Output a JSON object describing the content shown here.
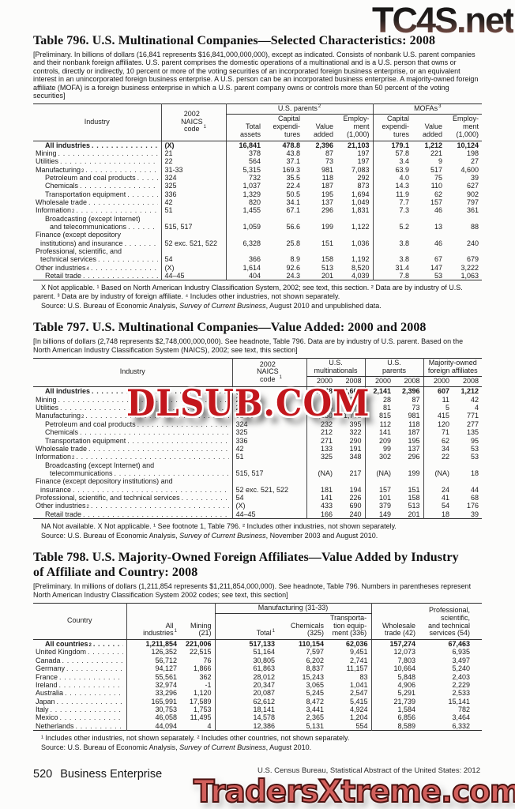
{
  "watermarks": {
    "top": "TC4S.net",
    "middle": "DLSUB.COM",
    "bottom": "TradersXtreme.com"
  },
  "footer": {
    "page_number": "520",
    "section": "Business Enterprise",
    "imprint": "U.S. Census Bureau, Statistical Abstract of the United States: 2012"
  },
  "t796": {
    "title": "Table 796. U.S. Multinational Companies—Selected Characteristics: 2008",
    "headnote": "[Preliminary. In billions of dollars (16,841 represents $16,841,000,000,000), except as indicated. Consists of nonbank U.S. parent companies and their nonbank foreign affiliates. U.S. parent comprises the domestic operations of a multinational and is a U.S. person that owns or controls, directly or indirectly, 10 percent or more of the voting securities of an incorporated foreign business enterprise, or an equivalent interest in an unincorporated foreign business enterprise. A U.S. person can be an incorporated business enterprise. A majority-owned foreign affiliate (MOFA) is a foreign business enterprise in which a U.S. parent company owns or controls more than 50 percent of the voting securities]",
    "header": {
      "industry": "Industry",
      "naics": {
        "text": "2002\nNAICS\ncode",
        "sup": "1"
      },
      "parents": {
        "text": "U.S. parents",
        "sup": "2"
      },
      "mofas": {
        "text": "MOFAs",
        "sup": "3"
      },
      "cols": [
        "Total\nassets",
        "Capital\nexpendi-\ntures",
        "Value\nadded",
        "Employ-\nment\n(1,000)",
        "Capital\nexpendi-\ntures",
        "Value\nadded",
        "Employ-\nment\n(1,000)"
      ]
    },
    "rows": [
      {
        "label": "All industries",
        "bold": true,
        "naics": "(X)",
        "values": [
          "16,841",
          "478.8",
          "2,396",
          "21,103",
          "179.1",
          "1,212",
          "10,124"
        ]
      },
      {
        "label": "Mining",
        "naics": "21",
        "values": [
          "378",
          "43.8",
          "87",
          "197",
          "57.8",
          "221",
          "198"
        ]
      },
      {
        "label": "Utilities",
        "naics": "22",
        "values": [
          "564",
          "37.1",
          "73",
          "197",
          "3.4",
          "9",
          "27"
        ]
      },
      {
        "label": "Manufacturing",
        "sup": "2",
        "naics": "31-33",
        "values": [
          "5,315",
          "169.3",
          "981",
          "7,083",
          "63.9",
          "517",
          "4,600"
        ]
      },
      {
        "label": "Petroleum and coal products",
        "ind": 1,
        "naics": "324",
        "values": [
          "732",
          "35.5",
          "118",
          "292",
          "4.0",
          "75",
          "39"
        ]
      },
      {
        "label": "Chemicals",
        "ind": 1,
        "naics": "325",
        "values": [
          "1,037",
          "22.4",
          "187",
          "873",
          "14.3",
          "110",
          "627"
        ]
      },
      {
        "label": "Transportation equipment",
        "ind": 1,
        "naics": "336",
        "values": [
          "1,329",
          "50.5",
          "195",
          "1,694",
          "11.9",
          "62",
          "902"
        ]
      },
      {
        "label": "Wholesale trade",
        "naics": "42",
        "values": [
          "820",
          "34.1",
          "137",
          "1,049",
          "7.7",
          "157",
          "797"
        ]
      },
      {
        "label": "Information",
        "sup": "2",
        "naics": "51",
        "values": [
          "1,455",
          "67.1",
          "296",
          "1,831",
          "7.3",
          "46",
          "361"
        ]
      },
      {
        "label": "Broadcasting (except Internet)",
        "label2": "and telecommunications",
        "ind": 1,
        "naics": "515, 517",
        "values": [
          "1,059",
          "56.6",
          "199",
          "1,122",
          "5.2",
          "13",
          "88"
        ]
      },
      {
        "label": "Finance (except depository",
        "label2": "institutions) and insurance",
        "naics": "52 exc. 521, 522",
        "values": [
          "6,328",
          "25.8",
          "151",
          "1,036",
          "3.8",
          "46",
          "240"
        ]
      },
      {
        "label": "Professional, scientific, and",
        "label2": "technical services",
        "naics": "54",
        "values": [
          "366",
          "8.9",
          "158",
          "1,192",
          "3.8",
          "67",
          "679"
        ]
      },
      {
        "label": "Other industries",
        "sup": "4",
        "naics": "(X)",
        "values": [
          "1,614",
          "92.6",
          "513",
          "8,520",
          "31.4",
          "147",
          "3,222"
        ]
      },
      {
        "label": "Retail trade",
        "ind": 1,
        "naics": "44–45",
        "values": [
          "404",
          "24.3",
          "201",
          "4,039",
          "7.8",
          "53",
          "1,063"
        ]
      }
    ],
    "note": "X Not applicable. ¹ Based on North American Industry Classification System, 2002; see text, this section. ² Data are by industry of U.S. parent. ³ Data are by industry of foreign affiliate. ⁴ Includes other industries, not shown separately.",
    "source": {
      "pre": "Source: U.S. Bureau of Economic Analysis, ",
      "italic": "Survey of Current Business",
      "post": ", August 2010 and unpublished data."
    }
  },
  "t797": {
    "title": "Table 797. U.S. Multinational Companies—Value Added: 2000 and 2008",
    "headnote": "[In billions of dollars (2,748 represents $2,748,000,000,000). See headnote, Table 796. Data are by industry of U.S. parent. Based on the North American Industry Classification System (NAICS), 2002; see text, this section]",
    "header": {
      "industry": "Industry",
      "naics": {
        "text": "2002\nNAICS\ncode",
        "sup": "1"
      },
      "groups": [
        "U.S.\nmultinationals",
        "U.S.\nparents",
        "Majority-owned\nforeign affiliates"
      ],
      "years": [
        "2000",
        "2008"
      ]
    },
    "rows": [
      {
        "label": "All industries",
        "bold": true,
        "naics": "(X)",
        "values": [
          "2,748",
          "3,608",
          "2,141",
          "2,396",
          "607",
          "1,212"
        ]
      },
      {
        "label": "Mining",
        "naics": "21",
        "values": [
          "39",
          "128",
          "28",
          "87",
          "11",
          "42"
        ]
      },
      {
        "label": "Utilities",
        "naics": "22",
        "values": [
          "86",
          "77",
          "81",
          "73",
          "5",
          "4"
        ]
      },
      {
        "label": "Manufacturing",
        "sup": "2",
        "naics": "31-33",
        "values": [
          "1,230",
          "1,752",
          "815",
          "981",
          "415",
          "771"
        ]
      },
      {
        "label": "Petroleum and coal products",
        "ind": 1,
        "naics": "324",
        "values": [
          "232",
          "395",
          "112",
          "118",
          "120",
          "277"
        ]
      },
      {
        "label": "Chemicals",
        "ind": 1,
        "naics": "325",
        "values": [
          "212",
          "322",
          "141",
          "187",
          "71",
          "135"
        ]
      },
      {
        "label": "Transportation equipment",
        "ind": 1,
        "naics": "336",
        "values": [
          "271",
          "290",
          "209",
          "195",
          "62",
          "95"
        ]
      },
      {
        "label": "Wholesale trade",
        "naics": "42",
        "values": [
          "133",
          "191",
          "99",
          "137",
          "34",
          "53"
        ]
      },
      {
        "label": "Information",
        "sup": "2",
        "naics": "51",
        "values": [
          "325",
          "348",
          "302",
          "296",
          "22",
          "53"
        ]
      },
      {
        "label": "Broadcasting (except Internet) and",
        "label2": "telecommunications",
        "ind": 1,
        "naics": "515, 517",
        "values": [
          "(NA)",
          "217",
          "(NA)",
          "199",
          "(NA)",
          "18"
        ]
      },
      {
        "label": "Finance (except depository institutions) and",
        "label2": "insurance",
        "naics": "52 exc. 521, 522",
        "values": [
          "181",
          "194",
          "157",
          "151",
          "24",
          "44"
        ]
      },
      {
        "label": "Professional, scientific, and technical services",
        "naics": "54",
        "values": [
          "141",
          "226",
          "101",
          "158",
          "41",
          "68"
        ]
      },
      {
        "label": "Other industries",
        "sup": "2",
        "naics": "(X)",
        "values": [
          "433",
          "690",
          "379",
          "513",
          "54",
          "176"
        ]
      },
      {
        "label": "Retail trade",
        "ind": 1,
        "naics": "44–45",
        "values": [
          "166",
          "240",
          "149",
          "201",
          "18",
          "39"
        ]
      }
    ],
    "note": "NA Not available. X Not applicable. ¹ See footnote 1, Table 796. ² Includes other industries, not shown separately.",
    "source": {
      "pre": "Source: U.S. Bureau of Economic Analysis, ",
      "italic": "Survey of Current Business",
      "post": ", November 2003 and August 2010."
    }
  },
  "t798": {
    "title": "Table 798. U.S. Majority-Owned Foreign Affiliates—Value Added by Industry of Affiliate and Country: 2008",
    "headnote": "[Preliminary. In millions of dollars (1,211,854 represents $1,211,854,000,000). See headnote, Table 796. Numbers in parentheses represent North American Industry Classification System 2002 codes; see text, this section]",
    "header": {
      "country": "Country",
      "all_industries": {
        "text": "All\nindustries",
        "sup": "1"
      },
      "mining": "Mining (21)",
      "manufacturing": "Manufacturing (31-33)",
      "total": {
        "text": "Total",
        "sup": "1"
      },
      "chemicals": "Chemicals\n(325)",
      "transportation": "Transporta-\ntion equip-\nment (336)",
      "wholesale": "Wholesale\ntrade (42)",
      "services": "Professional,\nscientific,\nand technical\nservices (54)"
    },
    "rows": [
      {
        "label": "All countries",
        "sup": "2",
        "bold": true,
        "values": [
          "1,211,854",
          "221,006",
          "517,133",
          "110,154",
          "62,036",
          "157,274",
          "67,463"
        ]
      },
      {
        "label": "United Kingdom",
        "values": [
          "126,352",
          "22,515",
          "51,164",
          "7,597",
          "9,451",
          "12,073",
          "6,935"
        ]
      },
      {
        "label": "Canada",
        "values": [
          "56,712",
          "76",
          "30,805",
          "6,202",
          "2,741",
          "7,803",
          "3,497"
        ]
      },
      {
        "label": "Germany",
        "values": [
          "94,127",
          "1,866",
          "61,863",
          "8,837",
          "11,157",
          "10,664",
          "5,240"
        ]
      },
      {
        "label": "France",
        "values": [
          "55,561",
          "362",
          "28,012",
          "15,243",
          "83",
          "5,848",
          "2,403"
        ]
      },
      {
        "label": "Ireland",
        "values": [
          "32,974",
          "-1",
          "20,347",
          "3,065",
          "1,041",
          "4,906",
          "2,229"
        ]
      },
      {
        "label": "Australia",
        "values": [
          "33,296",
          "1,120",
          "20,087",
          "5,245",
          "2,547",
          "5,291",
          "2,533"
        ]
      },
      {
        "label": "Japan",
        "values": [
          "165,991",
          "17,589",
          "62,612",
          "8,472",
          "5,415",
          "21,739",
          "15,141"
        ]
      },
      {
        "label": "Italy",
        "values": [
          "30,753",
          "1,753",
          "18,141",
          "3,441",
          "4,924",
          "1,584",
          "782"
        ]
      },
      {
        "label": "Mexico",
        "values": [
          "46,058",
          "11,495",
          "14,578",
          "2,365",
          "1,204",
          "6,856",
          "3,464"
        ]
      },
      {
        "label": "Netherlands",
        "values": [
          "44,094",
          "4",
          "12,386",
          "5,131",
          "554",
          "8,589",
          "6,332"
        ]
      }
    ],
    "note": "¹ Includes other industries, not shown separately. ² Includes other countries, not shown separately.",
    "source": {
      "pre": "Source: U.S. Bureau of Economic Analysis, ",
      "italic": "Survey of Current Business",
      "post": ", August 2010."
    }
  }
}
